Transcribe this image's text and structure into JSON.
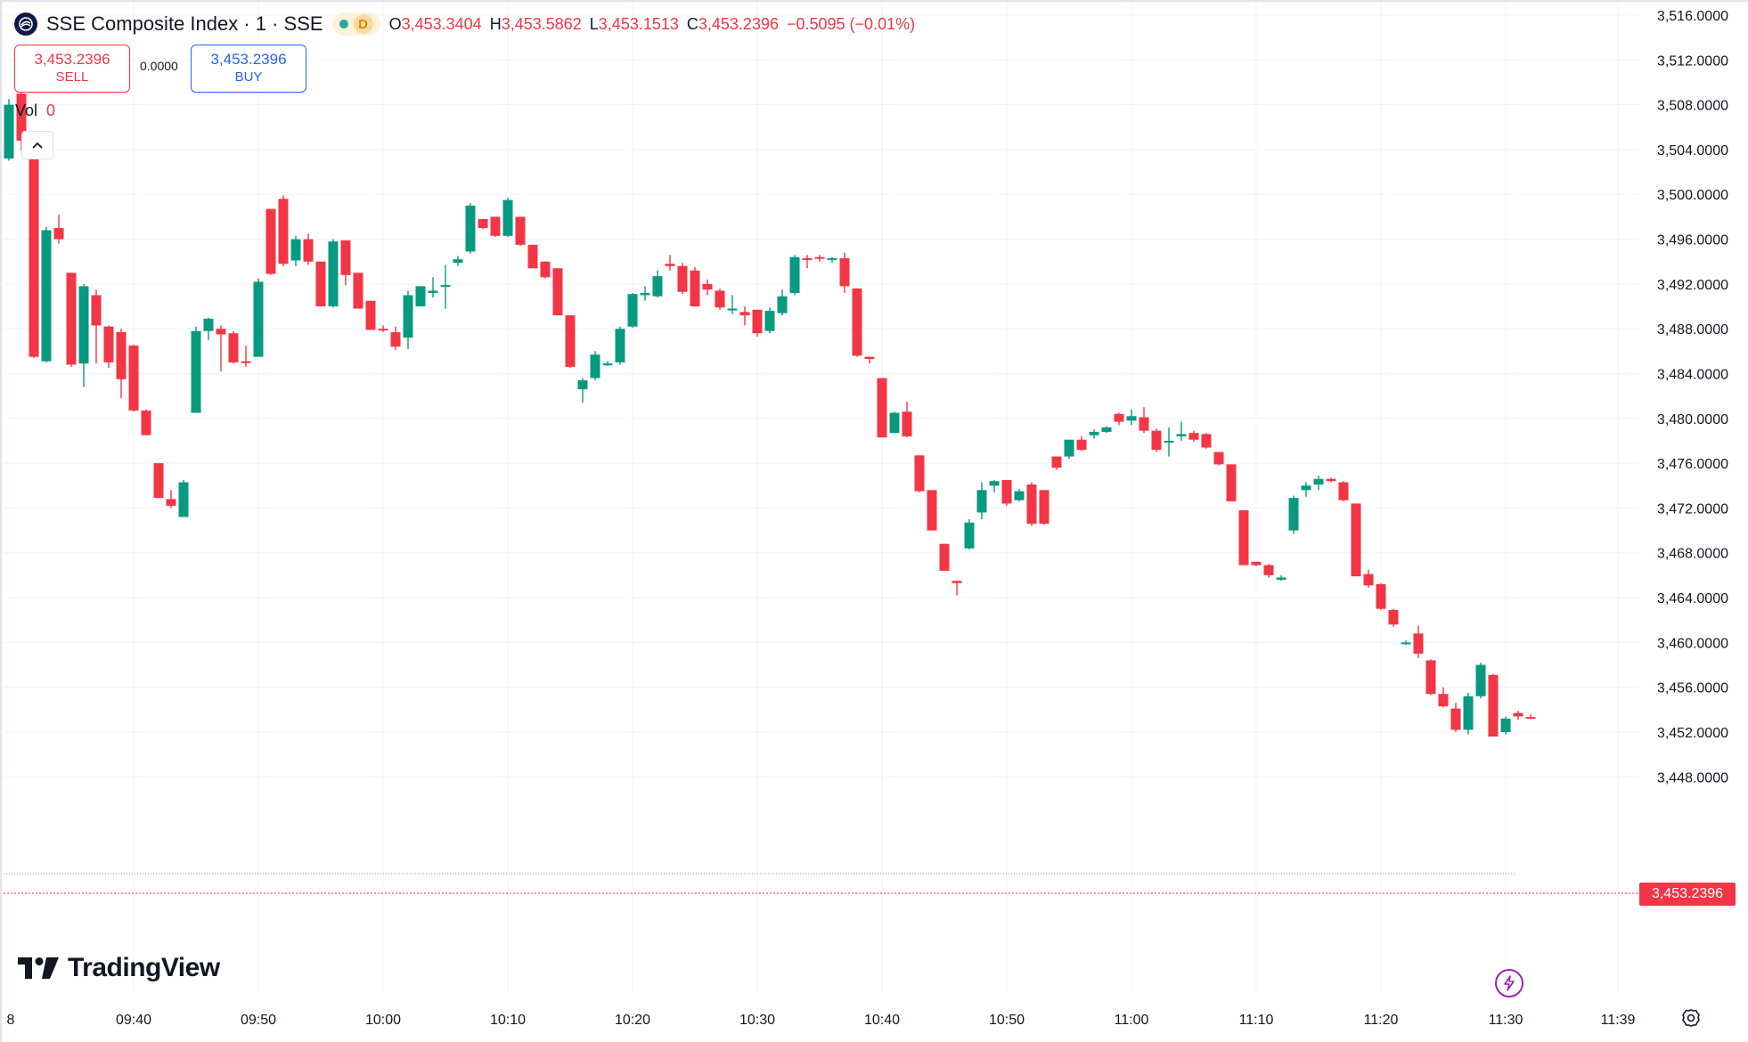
{
  "header": {
    "symbol_title": "SSE Composite Index · 1 · SSE",
    "badge_letter": "D",
    "ohlc": {
      "o_label": "O",
      "o_value": "3,453.3404",
      "h_label": "H",
      "h_value": "3,453.5862",
      "l_label": "L",
      "l_value": "3,453.1513",
      "c_label": "C",
      "c_value": "3,453.2396",
      "change": "−0.5095 (−0.01%)"
    }
  },
  "trade": {
    "sell_price": "3,453.2396",
    "sell_label": "SELL",
    "spread": "0.0000",
    "buy_price": "3,453.2396",
    "buy_label": "BUY"
  },
  "volume": {
    "label": "Vol",
    "value": "0"
  },
  "branding": {
    "name": "TradingView"
  },
  "last_price_label": "3,453.2396",
  "colors": {
    "up": "#089981",
    "down": "#f23645",
    "grid": "#f0f3fa",
    "text": "#131722"
  },
  "chart_data": {
    "type": "candlestick",
    "y_ticks": [
      "3,516.0000",
      "3,512.0000",
      "3,508.0000",
      "3,504.0000",
      "3,500.0000",
      "3,496.0000",
      "3,492.0000",
      "3,488.0000",
      "3,484.0000",
      "3,480.0000",
      "3,476.0000",
      "3,472.0000",
      "3,468.0000",
      "3,464.0000",
      "3,460.0000",
      "3,456.0000",
      "3,452.0000",
      "3,448.0000"
    ],
    "y_tick_values": [
      3516,
      3512,
      3508,
      3504,
      3500,
      3496,
      3492,
      3488,
      3484,
      3480,
      3476,
      3472,
      3468,
      3464,
      3460,
      3456,
      3452,
      3448
    ],
    "x_ticks": [
      "8",
      "09:40",
      "09:50",
      "10:00",
      "10:10",
      "10:20",
      "10:30",
      "10:40",
      "10:50",
      "11:00",
      "11:10",
      "11:20",
      "11:30",
      "11:39"
    ],
    "x_tick_minutes": [
      0,
      10,
      20,
      30,
      40,
      50,
      60,
      70,
      80,
      90,
      100,
      110,
      120,
      129
    ],
    "x_start_time": "09:30",
    "last_price": 3453.2396,
    "prev_close": 3454.7,
    "ohlc": [
      [
        3503.2,
        3508.5,
        3503.0,
        3508.0
      ],
      [
        3509.0,
        3510.0,
        3503.9,
        3504.8
      ],
      [
        3503.9,
        3503.9,
        3485.4,
        3485.5
      ],
      [
        3485.1,
        3497.1,
        3485.0,
        3496.8
      ],
      [
        3497.0,
        3498.2,
        3495.6,
        3496.0
      ],
      [
        3493.0,
        3493.0,
        3484.6,
        3484.8
      ],
      [
        3484.9,
        3492.0,
        3482.8,
        3491.8
      ],
      [
        3491.0,
        3491.5,
        3484.9,
        3488.3
      ],
      [
        3488.2,
        3488.3,
        3484.5,
        3485.0
      ],
      [
        3487.7,
        3488.0,
        3481.8,
        3483.5
      ],
      [
        3486.5,
        3486.6,
        3480.6,
        3480.7
      ],
      [
        3480.7,
        3480.8,
        3478.5,
        3478.5
      ],
      [
        3476.0,
        3476.0,
        3472.9,
        3472.9
      ],
      [
        3472.8,
        3473.6,
        3472.0,
        3472.2
      ],
      [
        3471.2,
        3474.5,
        3471.2,
        3474.3
      ],
      [
        3480.5,
        3488.2,
        3480.5,
        3487.8
      ],
      [
        3487.8,
        3489.0,
        3487.0,
        3488.9
      ],
      [
        3488.0,
        3488.3,
        3484.2,
        3487.5
      ],
      [
        3487.6,
        3487.8,
        3484.9,
        3485.0
      ],
      [
        3485.1,
        3486.5,
        3484.6,
        3485.0
      ],
      [
        3485.5,
        3492.5,
        3485.5,
        3492.2
      ],
      [
        3498.7,
        3498.7,
        3492.8,
        3492.9
      ],
      [
        3499.6,
        3499.9,
        3493.6,
        3493.8
      ],
      [
        3494.1,
        3496.3,
        3493.6,
        3496.0
      ],
      [
        3496.0,
        3496.5,
        3493.7,
        3494.0
      ],
      [
        3494.0,
        3494.0,
        3490.0,
        3490.0
      ],
      [
        3490.0,
        3496.0,
        3489.9,
        3495.8
      ],
      [
        3495.9,
        3495.9,
        3491.9,
        3492.8
      ],
      [
        3493.0,
        3493.0,
        3489.8,
        3489.8
      ],
      [
        3490.5,
        3490.5,
        3487.9,
        3487.9
      ],
      [
        3488.0,
        3488.3,
        3487.7,
        3487.9
      ],
      [
        3487.7,
        3488.2,
        3486.1,
        3486.4
      ],
      [
        3487.2,
        3491.4,
        3486.2,
        3491.0
      ],
      [
        3490.0,
        3491.8,
        3490.0,
        3491.8
      ],
      [
        3491.2,
        3492.6,
        3490.8,
        3491.4
      ],
      [
        3491.8,
        3493.7,
        3489.8,
        3491.9
      ],
      [
        3493.9,
        3494.5,
        3493.6,
        3494.2
      ],
      [
        3494.9,
        3499.2,
        3494.7,
        3499.0
      ],
      [
        3497.8,
        3497.8,
        3496.9,
        3497.0
      ],
      [
        3498.0,
        3498.0,
        3496.2,
        3496.3
      ],
      [
        3496.3,
        3499.7,
        3496.2,
        3499.5
      ],
      [
        3498.0,
        3498.0,
        3495.4,
        3495.5
      ],
      [
        3495.5,
        3495.5,
        3493.4,
        3493.4
      ],
      [
        3494.0,
        3494.0,
        3492.5,
        3492.6
      ],
      [
        3493.4,
        3493.4,
        3489.2,
        3489.2
      ],
      [
        3489.2,
        3489.2,
        3484.5,
        3484.6
      ],
      [
        3482.6,
        3483.6,
        3481.4,
        3483.4
      ],
      [
        3483.6,
        3486.0,
        3483.4,
        3485.7
      ],
      [
        3484.8,
        3485.1,
        3484.7,
        3484.9
      ],
      [
        3485.0,
        3488.2,
        3484.8,
        3488.0
      ],
      [
        3488.2,
        3491.2,
        3488.1,
        3491.1
      ],
      [
        3491.0,
        3491.8,
        3490.5,
        3491.2
      ],
      [
        3490.9,
        3493.2,
        3490.8,
        3492.7
      ],
      [
        3493.8,
        3494.6,
        3493.2,
        3493.6
      ],
      [
        3493.6,
        3493.9,
        3491.1,
        3491.3
      ],
      [
        3493.2,
        3493.5,
        3490.0,
        3490.0
      ],
      [
        3492.0,
        3492.4,
        3491.0,
        3491.5
      ],
      [
        3491.4,
        3491.6,
        3489.7,
        3489.9
      ],
      [
        3489.8,
        3491.0,
        3489.3,
        3489.8
      ],
      [
        3489.5,
        3490.0,
        3488.3,
        3489.2
      ],
      [
        3489.7,
        3489.7,
        3487.3,
        3487.6
      ],
      [
        3487.8,
        3489.9,
        3487.6,
        3489.6
      ],
      [
        3489.4,
        3491.5,
        3489.2,
        3490.9
      ],
      [
        3491.2,
        3494.6,
        3491.0,
        3494.4
      ],
      [
        3494.3,
        3494.6,
        3493.4,
        3494.2
      ],
      [
        3494.4,
        3494.6,
        3494.0,
        3494.3
      ],
      [
        3494.2,
        3494.4,
        3493.9,
        3494.3
      ],
      [
        3494.3,
        3494.8,
        3491.2,
        3491.8
      ],
      [
        3491.6,
        3491.6,
        3485.5,
        3485.6
      ],
      [
        3485.5,
        3485.5,
        3484.9,
        3485.3
      ],
      [
        3483.6,
        3483.6,
        3478.3,
        3478.3
      ],
      [
        3478.7,
        3480.6,
        3478.7,
        3480.5
      ],
      [
        3480.6,
        3481.5,
        3478.3,
        3478.4
      ],
      [
        3476.7,
        3476.7,
        3473.4,
        3473.5
      ],
      [
        3473.6,
        3473.6,
        3470.0,
        3470.0
      ],
      [
        3468.8,
        3468.8,
        3466.4,
        3466.4
      ],
      [
        3465.5,
        3465.5,
        3464.2,
        3465.3
      ],
      [
        3468.4,
        3471.0,
        3468.3,
        3470.7
      ],
      [
        3471.6,
        3474.3,
        3471.0,
        3473.6
      ],
      [
        3474.0,
        3474.5,
        3473.4,
        3474.4
      ],
      [
        3474.5,
        3474.5,
        3472.2,
        3472.4
      ],
      [
        3472.7,
        3473.7,
        3472.6,
        3473.5
      ],
      [
        3474.1,
        3474.3,
        3470.4,
        3470.6
      ],
      [
        3473.6,
        3473.6,
        3470.5,
        3470.6
      ],
      [
        3476.6,
        3476.6,
        3475.4,
        3475.6
      ],
      [
        3476.6,
        3478.1,
        3476.4,
        3478.1
      ],
      [
        3478.1,
        3478.4,
        3477.1,
        3477.2
      ],
      [
        3478.5,
        3479.0,
        3478.2,
        3478.8
      ],
      [
        3478.8,
        3479.3,
        3478.7,
        3479.2
      ],
      [
        3480.4,
        3480.5,
        3479.4,
        3479.7
      ],
      [
        3479.8,
        3480.8,
        3479.4,
        3480.2
      ],
      [
        3480.1,
        3481.0,
        3478.7,
        3478.9
      ],
      [
        3478.9,
        3479.1,
        3477.0,
        3477.2
      ],
      [
        3477.9,
        3479.2,
        3476.6,
        3478.0
      ],
      [
        3478.4,
        3479.7,
        3478.0,
        3478.6
      ],
      [
        3478.7,
        3478.9,
        3477.9,
        3478.1
      ],
      [
        3478.6,
        3478.7,
        3477.3,
        3477.4
      ],
      [
        3477.0,
        3477.0,
        3475.8,
        3475.9
      ],
      [
        3475.9,
        3475.9,
        3472.6,
        3472.6
      ],
      [
        3471.8,
        3471.8,
        3466.9,
        3466.9
      ],
      [
        3467.2,
        3467.2,
        3466.8,
        3466.9
      ],
      [
        3466.9,
        3467.0,
        3465.8,
        3466.0
      ],
      [
        3465.6,
        3466.0,
        3465.5,
        3465.8
      ],
      [
        3470.0,
        3473.1,
        3469.7,
        3472.9
      ],
      [
        3473.6,
        3474.3,
        3473.0,
        3474.0
      ],
      [
        3474.1,
        3474.9,
        3473.6,
        3474.6
      ],
      [
        3474.6,
        3474.7,
        3474.3,
        3474.4
      ],
      [
        3474.3,
        3474.4,
        3472.6,
        3472.7
      ],
      [
        3472.4,
        3472.4,
        3465.9,
        3465.9
      ],
      [
        3466.1,
        3466.5,
        3464.9,
        3465.1
      ],
      [
        3465.2,
        3465.3,
        3462.9,
        3463.0
      ],
      [
        3462.9,
        3463.0,
        3461.4,
        3461.6
      ],
      [
        3459.9,
        3460.2,
        3459.8,
        3460.0
      ],
      [
        3460.8,
        3461.5,
        3458.6,
        3459.0
      ],
      [
        3458.4,
        3458.5,
        3455.3,
        3455.4
      ],
      [
        3455.4,
        3456.0,
        3454.2,
        3454.3
      ],
      [
        3454.1,
        3454.6,
        3452.0,
        3452.2
      ],
      [
        3452.2,
        3455.5,
        3451.8,
        3455.2
      ],
      [
        3455.2,
        3458.2,
        3455.0,
        3458.0
      ],
      [
        3457.1,
        3457.2,
        3451.6,
        3451.6
      ],
      [
        3452.0,
        3453.4,
        3451.8,
        3453.2
      ],
      [
        3453.7,
        3453.9,
        3453.1,
        3453.4
      ],
      [
        3453.3404,
        3453.5862,
        3453.1513,
        3453.2396
      ]
    ]
  }
}
